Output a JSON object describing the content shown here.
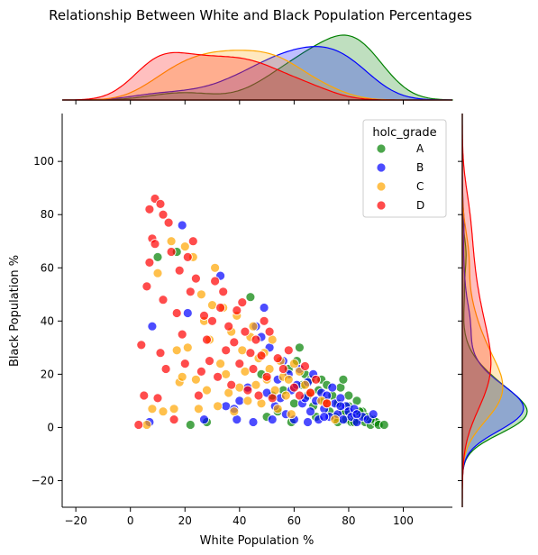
{
  "chart_data": {
    "type": "scatter",
    "title": "Relationship Between White and Black Population Percentages",
    "xlabel": "White Population %",
    "ylabel": "Black Population %",
    "xlim": [
      -25,
      118
    ],
    "ylim": [
      -30,
      118
    ],
    "xticks": [
      "−20",
      "0",
      "20",
      "40",
      "60",
      "80",
      "100"
    ],
    "xtick_values": [
      -20,
      0,
      20,
      40,
      60,
      80,
      100
    ],
    "yticks": [
      "−20",
      "0",
      "20",
      "40",
      "60",
      "80",
      "100"
    ],
    "ytick_values": [
      -20,
      0,
      20,
      40,
      60,
      80,
      100
    ],
    "grid": false,
    "legend": {
      "title": "holc_grade",
      "placement": "top-right"
    },
    "series": [
      {
        "name": "A",
        "color": "#008000",
        "points": [
          [
            10,
            64
          ],
          [
            17,
            66
          ],
          [
            22,
            1
          ],
          [
            28,
            2
          ],
          [
            44,
            49
          ],
          [
            48,
            20
          ],
          [
            50,
            4
          ],
          [
            52,
            12
          ],
          [
            54,
            6
          ],
          [
            56,
            14
          ],
          [
            58,
            22
          ],
          [
            59,
            2
          ],
          [
            60,
            9
          ],
          [
            61,
            25
          ],
          [
            62,
            30
          ],
          [
            63,
            16
          ],
          [
            64,
            20
          ],
          [
            65,
            12
          ],
          [
            66,
            18
          ],
          [
            67,
            8
          ],
          [
            68,
            4
          ],
          [
            69,
            14
          ],
          [
            70,
            18
          ],
          [
            71,
            10
          ],
          [
            72,
            16
          ],
          [
            73,
            6
          ],
          [
            74,
            12
          ],
          [
            75,
            4
          ],
          [
            76,
            9
          ],
          [
            77,
            15
          ],
          [
            78,
            18
          ],
          [
            78,
            6
          ],
          [
            79,
            3
          ],
          [
            80,
            8
          ],
          [
            80,
            12
          ],
          [
            81,
            2
          ],
          [
            82,
            5
          ],
          [
            83,
            10
          ],
          [
            84,
            3
          ],
          [
            85,
            6
          ],
          [
            86,
            2
          ],
          [
            87,
            4
          ],
          [
            88,
            1
          ],
          [
            89,
            3
          ],
          [
            90,
            2
          ],
          [
            91,
            1
          ],
          [
            93,
            1
          ],
          [
            88,
            3
          ],
          [
            84,
            6
          ],
          [
            86,
            4
          ],
          [
            82,
            2
          ],
          [
            79,
            6
          ],
          [
            76,
            2
          ]
        ]
      },
      {
        "name": "B",
        "color": "#0000ff",
        "points": [
          [
            7,
            2
          ],
          [
            8,
            38
          ],
          [
            19,
            76
          ],
          [
            21,
            43
          ],
          [
            27,
            3
          ],
          [
            33,
            57
          ],
          [
            35,
            8
          ],
          [
            38,
            7
          ],
          [
            39,
            3
          ],
          [
            40,
            10
          ],
          [
            43,
            15
          ],
          [
            45,
            2
          ],
          [
            46,
            38
          ],
          [
            48,
            34
          ],
          [
            49,
            45
          ],
          [
            50,
            13
          ],
          [
            51,
            30
          ],
          [
            52,
            3
          ],
          [
            53,
            8
          ],
          [
            54,
            18
          ],
          [
            55,
            11
          ],
          [
            56,
            25
          ],
          [
            57,
            5
          ],
          [
            58,
            20
          ],
          [
            59,
            14
          ],
          [
            60,
            3
          ],
          [
            61,
            16
          ],
          [
            62,
            22
          ],
          [
            63,
            9
          ],
          [
            64,
            11
          ],
          [
            65,
            17
          ],
          [
            66,
            6
          ],
          [
            67,
            20
          ],
          [
            68,
            10
          ],
          [
            69,
            3
          ],
          [
            70,
            13
          ],
          [
            71,
            7
          ],
          [
            72,
            12
          ],
          [
            73,
            4
          ],
          [
            74,
            15
          ],
          [
            75,
            9
          ],
          [
            76,
            5
          ],
          [
            77,
            11
          ],
          [
            78,
            3
          ],
          [
            79,
            8
          ],
          [
            80,
            6
          ],
          [
            81,
            4
          ],
          [
            82,
            7
          ],
          [
            83,
            2
          ],
          [
            85,
            4
          ],
          [
            87,
            3
          ],
          [
            89,
            5
          ],
          [
            83,
            5
          ],
          [
            77,
            8
          ],
          [
            71,
            4
          ],
          [
            65,
            2
          ]
        ]
      },
      {
        "name": "C",
        "color": "#ffa500",
        "points": [
          [
            6,
            1
          ],
          [
            8,
            7
          ],
          [
            10,
            58
          ],
          [
            12,
            6
          ],
          [
            15,
            70
          ],
          [
            16,
            7
          ],
          [
            17,
            29
          ],
          [
            18,
            17
          ],
          [
            19,
            19
          ],
          [
            20,
            68
          ],
          [
            21,
            30
          ],
          [
            23,
            64
          ],
          [
            24,
            18
          ],
          [
            25,
            7
          ],
          [
            26,
            50
          ],
          [
            27,
            40
          ],
          [
            28,
            14
          ],
          [
            29,
            33
          ],
          [
            30,
            46
          ],
          [
            31,
            60
          ],
          [
            32,
            8
          ],
          [
            33,
            24
          ],
          [
            34,
            45
          ],
          [
            35,
            20
          ],
          [
            36,
            13
          ],
          [
            37,
            36
          ],
          [
            38,
            6
          ],
          [
            39,
            42
          ],
          [
            40,
            15
          ],
          [
            41,
            29
          ],
          [
            42,
            21
          ],
          [
            43,
            10
          ],
          [
            44,
            34
          ],
          [
            45,
            38
          ],
          [
            46,
            16
          ],
          [
            47,
            26
          ],
          [
            48,
            9
          ],
          [
            49,
            28
          ],
          [
            50,
            18
          ],
          [
            51,
            22
          ],
          [
            52,
            33
          ],
          [
            53,
            14
          ],
          [
            54,
            7
          ],
          [
            55,
            25
          ],
          [
            56,
            19
          ],
          [
            57,
            12
          ],
          [
            58,
            18
          ],
          [
            59,
            5
          ],
          [
            60,
            24
          ],
          [
            62,
            21
          ],
          [
            64,
            16
          ],
          [
            66,
            13
          ],
          [
            70,
            10
          ],
          [
            72,
            9
          ],
          [
            75,
            3
          ]
        ]
      },
      {
        "name": "D",
        "color": "#ff0000",
        "points": [
          [
            3,
            1
          ],
          [
            4,
            31
          ],
          [
            5,
            12
          ],
          [
            6,
            53
          ],
          [
            7,
            62
          ],
          [
            8,
            71
          ],
          [
            9,
            69
          ],
          [
            10,
            11
          ],
          [
            11,
            28
          ],
          [
            12,
            48
          ],
          [
            13,
            22
          ],
          [
            14,
            77
          ],
          [
            15,
            66
          ],
          [
            16,
            3
          ],
          [
            17,
            43
          ],
          [
            18,
            59
          ],
          [
            19,
            35
          ],
          [
            20,
            24
          ],
          [
            21,
            64
          ],
          [
            22,
            51
          ],
          [
            23,
            70
          ],
          [
            24,
            56
          ],
          [
            25,
            12
          ],
          [
            26,
            21
          ],
          [
            27,
            42
          ],
          [
            28,
            33
          ],
          [
            29,
            25
          ],
          [
            30,
            40
          ],
          [
            31,
            55
          ],
          [
            32,
            19
          ],
          [
            33,
            45
          ],
          [
            34,
            51
          ],
          [
            35,
            29
          ],
          [
            36,
            38
          ],
          [
            37,
            16
          ],
          [
            38,
            32
          ],
          [
            39,
            44
          ],
          [
            40,
            24
          ],
          [
            41,
            47
          ],
          [
            42,
            36
          ],
          [
            43,
            14
          ],
          [
            44,
            28
          ],
          [
            45,
            22
          ],
          [
            46,
            33
          ],
          [
            47,
            12
          ],
          [
            48,
            27
          ],
          [
            49,
            40
          ],
          [
            50,
            19
          ],
          [
            51,
            36
          ],
          [
            52,
            11
          ],
          [
            54,
            26
          ],
          [
            56,
            22
          ],
          [
            58,
            29
          ],
          [
            60,
            15
          ],
          [
            62,
            12
          ],
          [
            64,
            23
          ],
          [
            66,
            13
          ],
          [
            68,
            18
          ],
          [
            72,
            9
          ],
          [
            9,
            86
          ],
          [
            11,
            84
          ],
          [
            7,
            82
          ],
          [
            12,
            80
          ]
        ]
      }
    ]
  }
}
